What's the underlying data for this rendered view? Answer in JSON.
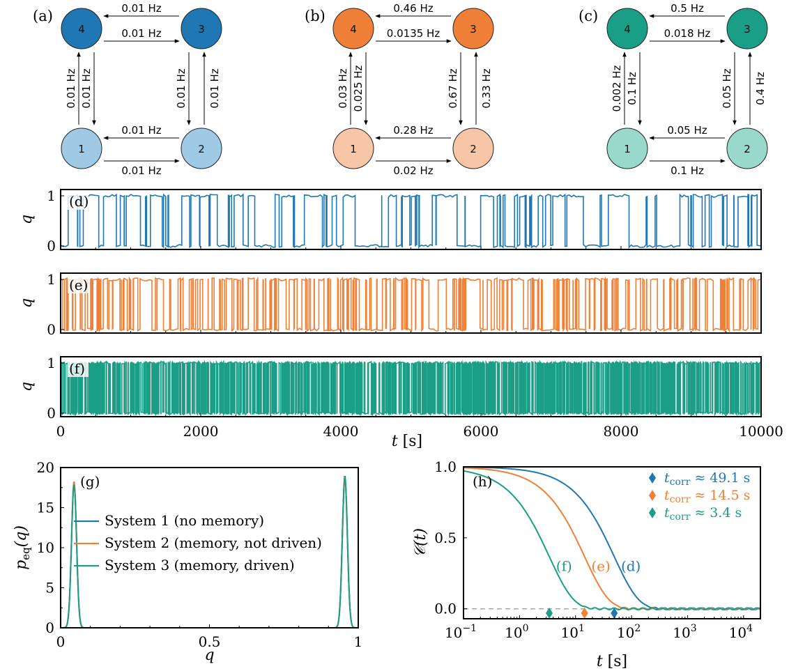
{
  "colors": {
    "s1": "#1f77b4",
    "s2": "#f07f37",
    "s3": "#1a9e86",
    "s1_light": "#9ecae6",
    "s2_light": "#f6c6a7",
    "s3_light": "#99d9cb",
    "gray": "#aaaaaa"
  },
  "networks": [
    {
      "label": "(a)",
      "color": "s1",
      "light": "s1_light",
      "rates": {
        "top_upper": "0.01 Hz",
        "top_lower": "0.01 Hz",
        "bottom_upper": "0.01 Hz",
        "bottom_lower": "0.01 Hz",
        "left_outer": "0.01 Hz",
        "left_inner": "0.01 Hz",
        "right_inner": "0.01 Hz",
        "right_outer": "0.01 Hz"
      }
    },
    {
      "label": "(b)",
      "color": "s2",
      "light": "s2_light",
      "rates": {
        "top_upper": "0.46 Hz",
        "top_lower": "0.0135 Hz",
        "bottom_upper": "0.28 Hz",
        "bottom_lower": "0.02 Hz",
        "left_outer": "0.03 Hz",
        "left_inner": "0.025 Hz",
        "right_inner": "0.67 Hz",
        "right_outer": "0.33 Hz"
      }
    },
    {
      "label": "(c)",
      "color": "s3",
      "light": "s3_light",
      "rates": {
        "top_upper": "0.5 Hz",
        "top_lower": "0.018 Hz",
        "bottom_upper": "0.05 Hz",
        "bottom_lower": "0.1 Hz",
        "left_outer": "0.002 Hz",
        "left_inner": "0.1 Hz",
        "right_inner": "0.05 Hz",
        "right_outer": "0.4 Hz"
      }
    }
  ],
  "node_labels": [
    "1",
    "2",
    "3",
    "4"
  ],
  "chart_data": [
    {
      "panel": "(d)",
      "type": "line",
      "color": "s1",
      "ylabel": "q",
      "yticks": [
        "0",
        "1"
      ],
      "ylim": [
        0,
        1
      ],
      "xlim": [
        0,
        10000
      ],
      "corr_time_s": 49.1
    },
    {
      "panel": "(e)",
      "type": "line",
      "color": "s2",
      "ylabel": "q",
      "yticks": [
        "0",
        "1"
      ],
      "ylim": [
        0,
        1
      ],
      "xlim": [
        0,
        10000
      ],
      "corr_time_s": 14.5
    },
    {
      "panel": "(f)",
      "type": "line",
      "color": "s3",
      "ylabel": "q",
      "yticks": [
        "0",
        "1"
      ],
      "ylim": [
        0,
        1
      ],
      "xlim": [
        0,
        10000
      ],
      "corr_time_s": 3.4,
      "xticks": [
        "0",
        "2000",
        "4000",
        "6000",
        "8000",
        "10000"
      ],
      "xtick_values": [
        0,
        2000,
        4000,
        6000,
        8000,
        10000
      ],
      "xlabel_var": "t",
      "xlabel_unit": "[s]"
    },
    {
      "panel": "(g)",
      "type": "line",
      "xlabel": "q",
      "ylabel_main": "p",
      "ylabel_sub": "eq",
      "ylabel_arg": "(q)",
      "xlim": [
        0,
        1
      ],
      "ylim": [
        0,
        20
      ],
      "xticks": [
        "0",
        "0.5",
        "1"
      ],
      "xtick_values": [
        0,
        0.5,
        1
      ],
      "yticks": [
        "0",
        "5",
        "10",
        "15",
        "20"
      ],
      "ytick_values": [
        0,
        5,
        10,
        15,
        20
      ],
      "peaks": [
        {
          "q": 0.045,
          "width": 0.0085
        },
        {
          "q": 0.955,
          "width": 0.0085
        }
      ],
      "series": [
        {
          "name": "System 1 (no memory)",
          "color": "s1",
          "peak_heights": [
            18.0,
            18.7
          ]
        },
        {
          "name": "System 2 (memory, not driven)",
          "color": "s2",
          "peak_heights": [
            18.3,
            18.6
          ]
        },
        {
          "name": "System 3 (memory, driven)",
          "color": "s3",
          "peak_heights": [
            17.9,
            19.0
          ]
        }
      ],
      "legend": "center-left"
    },
    {
      "panel": "(h)",
      "type": "line",
      "xscale": "log",
      "xlim": [
        0.1,
        20000
      ],
      "ylim": [
        -0.07,
        1.0
      ],
      "ylabel": "𝒞(t)",
      "xlabel_var": "t",
      "xlabel_unit": "[s]",
      "xticks": [
        "10",
        "10",
        "10",
        "10",
        "10",
        "10"
      ],
      "xtick_exps": [
        "−1",
        "0",
        "1",
        "2",
        "3",
        "4"
      ],
      "xtick_values": [
        0.1,
        1,
        10,
        100,
        1000,
        10000
      ],
      "yticks": [
        "0.0",
        "0.5",
        "1.0"
      ],
      "ytick_values": [
        0,
        0.5,
        1
      ],
      "baseline": 0,
      "series": [
        {
          "label": "(d)",
          "color": "s1",
          "tcorr": 49.1
        },
        {
          "label": "(e)",
          "color": "s2",
          "tcorr": 14.5
        },
        {
          "label": "(f)",
          "color": "s3",
          "tcorr": 3.4
        }
      ],
      "legend_entries": [
        {
          "sub": "corr",
          "text": "≈ 49.1 s",
          "color": "s1"
        },
        {
          "sub": "corr",
          "text": "≈ 14.5 s",
          "color": "s2"
        },
        {
          "sub": "corr",
          "text": "≈ 3.4 s",
          "color": "s3"
        }
      ],
      "legend_var": "t",
      "legend": "top-right"
    }
  ]
}
